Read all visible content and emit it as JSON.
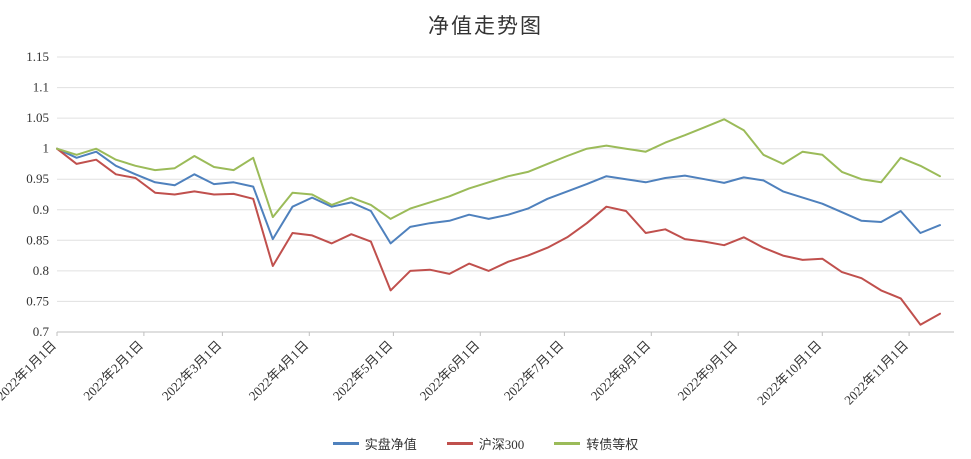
{
  "chart_data": {
    "type": "line",
    "title": "净值走势图",
    "xlabel": "",
    "ylabel": "",
    "grid": true,
    "legend_position": "bottom",
    "ylim": [
      0.7,
      1.15
    ],
    "y_ticks": [
      0.7,
      0.75,
      0.8,
      0.85,
      0.9,
      0.95,
      1,
      1.05,
      1.1,
      1.15
    ],
    "x_tick_labels": [
      "2022年1月1日",
      "2022年2月1日",
      "2022年3月1日",
      "2022年4月1日",
      "2022年5月1日",
      "2022年6月1日",
      "2022年7月1日",
      "2022年8月1日",
      "2022年9月1日",
      "2022年10月1日",
      "2022年11月1日"
    ],
    "x_tick_days": [
      0,
      31,
      59,
      90,
      120,
      151,
      181,
      212,
      243,
      273,
      304
    ],
    "x_range_days": [
      0,
      320
    ],
    "sample_days": [
      0,
      7,
      14,
      21,
      28,
      35,
      42,
      49,
      56,
      63,
      70,
      77,
      84,
      91,
      98,
      105,
      112,
      119,
      126,
      133,
      140,
      147,
      154,
      161,
      168,
      175,
      182,
      189,
      196,
      203,
      210,
      217,
      224,
      231,
      238,
      245,
      252,
      259,
      266,
      273,
      280,
      287,
      294,
      301,
      308,
      315
    ],
    "series": [
      {
        "name": "实盘净值",
        "color": "#4F81BD",
        "values": [
          1.0,
          0.985,
          0.995,
          0.972,
          0.958,
          0.945,
          0.94,
          0.958,
          0.942,
          0.945,
          0.938,
          0.852,
          0.905,
          0.92,
          0.905,
          0.912,
          0.898,
          0.845,
          0.872,
          0.878,
          0.882,
          0.892,
          0.885,
          0.892,
          0.902,
          0.918,
          0.93,
          0.942,
          0.955,
          0.95,
          0.945,
          0.952,
          0.956,
          0.95,
          0.944,
          0.953,
          0.948,
          0.93,
          0.92,
          0.91,
          0.896,
          0.882,
          0.88,
          0.898,
          0.862,
          0.875
        ]
      },
      {
        "name": "沪深300",
        "color": "#C0504D",
        "values": [
          1.0,
          0.975,
          0.982,
          0.958,
          0.952,
          0.928,
          0.925,
          0.93,
          0.925,
          0.926,
          0.918,
          0.808,
          0.862,
          0.858,
          0.845,
          0.86,
          0.848,
          0.768,
          0.8,
          0.802,
          0.795,
          0.812,
          0.8,
          0.815,
          0.825,
          0.838,
          0.855,
          0.878,
          0.905,
          0.898,
          0.862,
          0.868,
          0.852,
          0.848,
          0.842,
          0.855,
          0.838,
          0.825,
          0.818,
          0.82,
          0.798,
          0.788,
          0.768,
          0.755,
          0.712,
          0.73
        ]
      },
      {
        "name": "转债等权",
        "color": "#9BBB59",
        "values": [
          1.0,
          0.99,
          1.0,
          0.982,
          0.972,
          0.965,
          0.968,
          0.988,
          0.97,
          0.965,
          0.985,
          0.888,
          0.928,
          0.925,
          0.908,
          0.92,
          0.908,
          0.885,
          0.902,
          0.912,
          0.922,
          0.935,
          0.945,
          0.955,
          0.962,
          0.975,
          0.988,
          1.0,
          1.005,
          1.0,
          0.995,
          1.01,
          1.022,
          1.035,
          1.048,
          1.03,
          0.99,
          0.975,
          0.995,
          0.99,
          0.962,
          0.95,
          0.945,
          0.985,
          0.972,
          0.955
        ]
      }
    ],
    "grid_color": "#e0e0e0",
    "axis_color": "#bfbfbf",
    "text_color": "#333333"
  }
}
